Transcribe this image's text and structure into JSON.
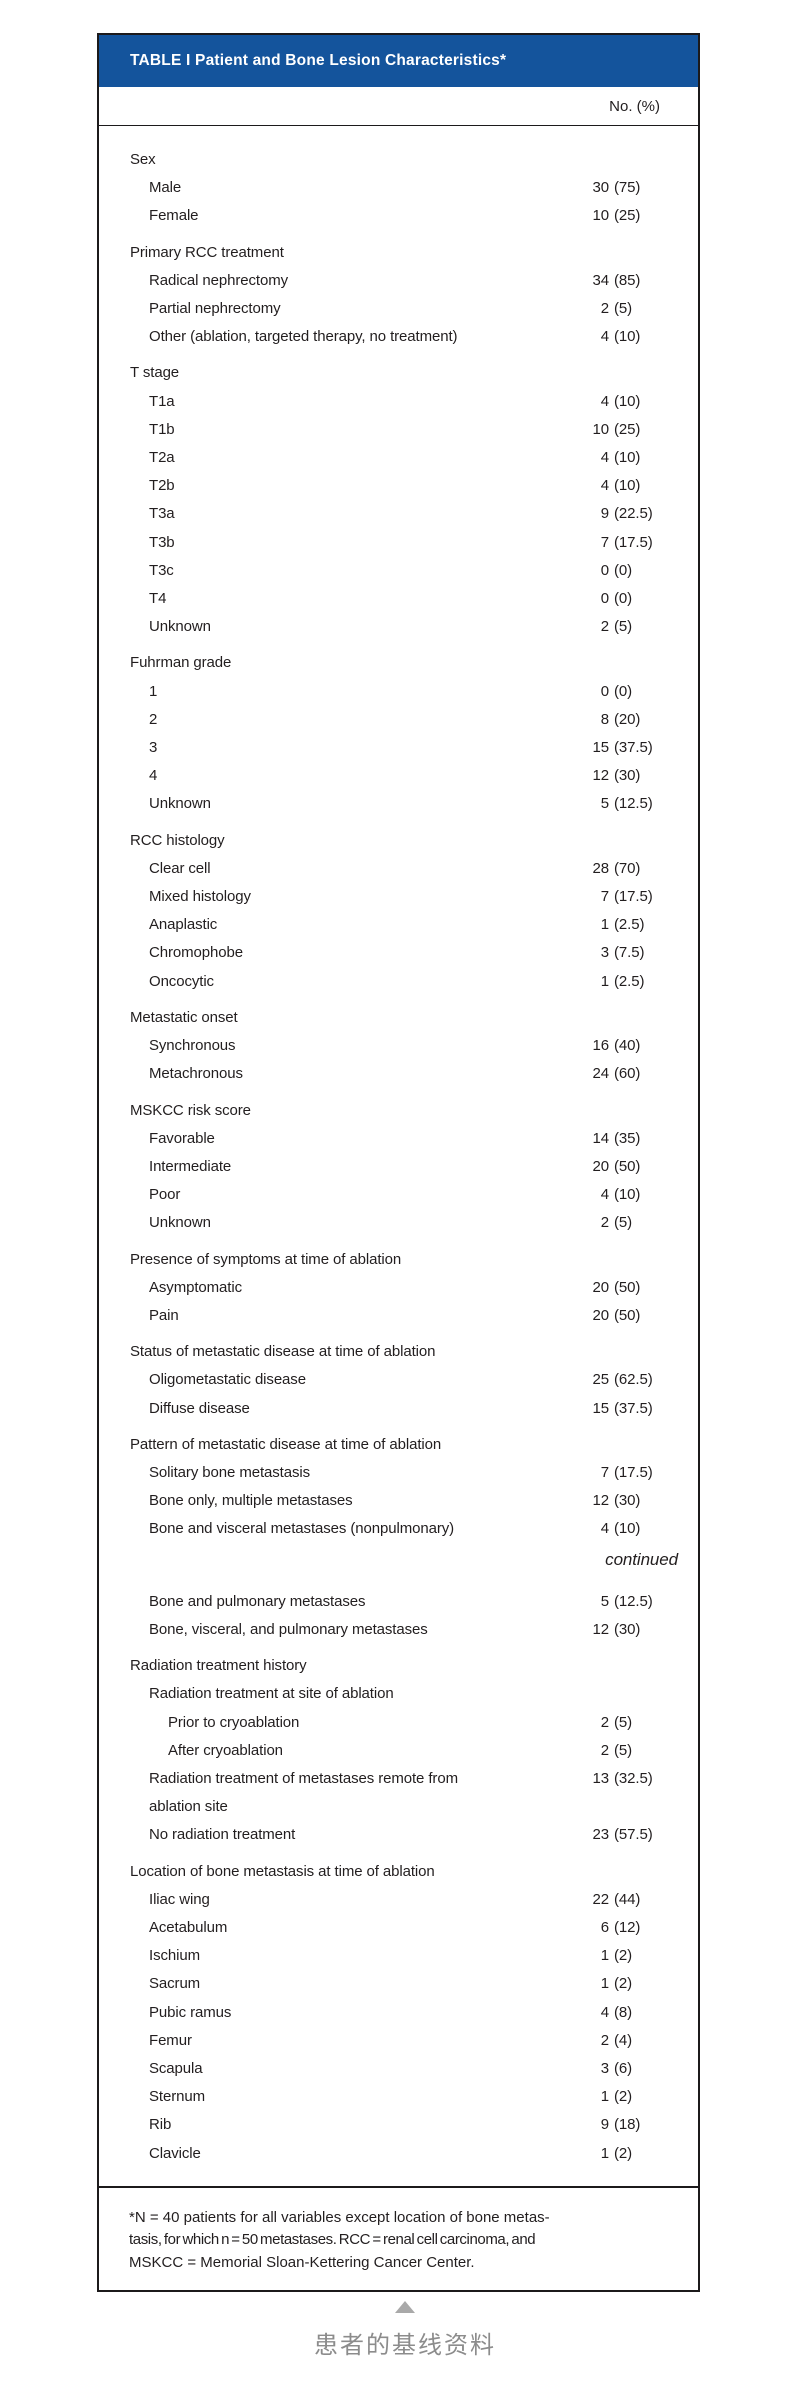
{
  "colors": {
    "header_bg": "#14549c",
    "header_text": "#ffffff",
    "border": "#1c1a1b",
    "body_text": "#221e1f",
    "caption_gray": "#8c8c8c",
    "triangle_gray": "#a9a9a9"
  },
  "table": {
    "title": "TABLE I Patient and Bone Lesion Characteristics*",
    "column_header": "No. (%)",
    "rows": [
      {
        "type": "group",
        "label": "Sex"
      },
      {
        "type": "item",
        "label": "Male",
        "no": "30",
        "pct": "(75)"
      },
      {
        "type": "item",
        "label": "Female",
        "no": "10",
        "pct": "(25)"
      },
      {
        "type": "group",
        "label": "Primary RCC treatment"
      },
      {
        "type": "item",
        "label": "Radical nephrectomy",
        "no": "34",
        "pct": "(85)"
      },
      {
        "type": "item",
        "label": "Partial nephrectomy",
        "no": "2",
        "pct": "(5)"
      },
      {
        "type": "item",
        "label": "Other (ablation, targeted therapy, no treatment)",
        "no": "4",
        "pct": "(10)"
      },
      {
        "type": "group",
        "label": "T stage"
      },
      {
        "type": "item",
        "label": "T1a",
        "no": "4",
        "pct": "(10)"
      },
      {
        "type": "item",
        "label": "T1b",
        "no": "10",
        "pct": "(25)"
      },
      {
        "type": "item",
        "label": "T2a",
        "no": "4",
        "pct": "(10)"
      },
      {
        "type": "item",
        "label": "T2b",
        "no": "4",
        "pct": "(10)"
      },
      {
        "type": "item",
        "label": "T3a",
        "no": "9",
        "pct": "(22.5)"
      },
      {
        "type": "item",
        "label": "T3b",
        "no": "7",
        "pct": "(17.5)"
      },
      {
        "type": "item",
        "label": "T3c",
        "no": "0",
        "pct": "(0)"
      },
      {
        "type": "item",
        "label": "T4",
        "no": "0",
        "pct": "(0)"
      },
      {
        "type": "item",
        "label": "Unknown",
        "no": "2",
        "pct": "(5)"
      },
      {
        "type": "group",
        "label": "Fuhrman grade"
      },
      {
        "type": "item",
        "label": "1",
        "no": "0",
        "pct": "(0)"
      },
      {
        "type": "item",
        "label": "2",
        "no": "8",
        "pct": "(20)"
      },
      {
        "type": "item",
        "label": "3",
        "no": "15",
        "pct": "(37.5)"
      },
      {
        "type": "item",
        "label": "4",
        "no": "12",
        "pct": "(30)"
      },
      {
        "type": "item",
        "label": "Unknown",
        "no": "5",
        "pct": "(12.5)"
      },
      {
        "type": "group",
        "label": "RCC histology"
      },
      {
        "type": "item",
        "label": "Clear cell",
        "no": "28",
        "pct": "(70)"
      },
      {
        "type": "item",
        "label": "Mixed histology",
        "no": "7",
        "pct": "(17.5)"
      },
      {
        "type": "item",
        "label": "Anaplastic",
        "no": "1",
        "pct": "(2.5)"
      },
      {
        "type": "item",
        "label": "Chromophobe",
        "no": "3",
        "pct": "(7.5)"
      },
      {
        "type": "item",
        "label": "Oncocytic",
        "no": "1",
        "pct": "(2.5)"
      },
      {
        "type": "group",
        "label": "Metastatic onset"
      },
      {
        "type": "item",
        "label": "Synchronous",
        "no": "16",
        "pct": "(40)"
      },
      {
        "type": "item",
        "label": "Metachronous",
        "no": "24",
        "pct": "(60)"
      },
      {
        "type": "group",
        "label": "MSKCC risk score"
      },
      {
        "type": "item",
        "label": "Favorable",
        "no": "14",
        "pct": "(35)"
      },
      {
        "type": "item",
        "label": "Intermediate",
        "no": "20",
        "pct": "(50)"
      },
      {
        "type": "item",
        "label": "Poor",
        "no": "4",
        "pct": "(10)"
      },
      {
        "type": "item",
        "label": "Unknown",
        "no": "2",
        "pct": "(5)"
      },
      {
        "type": "group",
        "label": "Presence of symptoms at time of ablation"
      },
      {
        "type": "item",
        "label": "Asymptomatic",
        "no": "20",
        "pct": "(50)"
      },
      {
        "type": "item",
        "label": "Pain",
        "no": "20",
        "pct": "(50)"
      },
      {
        "type": "group",
        "label": "Status of metastatic disease at time of ablation"
      },
      {
        "type": "item",
        "label": "Oligometastatic disease",
        "no": "25",
        "pct": "(62.5)"
      },
      {
        "type": "item",
        "label": "Diffuse disease",
        "no": "15",
        "pct": "(37.5)"
      },
      {
        "type": "group",
        "label": "Pattern of metastatic disease at time of ablation"
      },
      {
        "type": "item",
        "label": "Solitary bone metastasis",
        "no": "7",
        "pct": "(17.5)"
      },
      {
        "type": "item",
        "label": "Bone only, multiple metastases",
        "no": "12",
        "pct": "(30)"
      },
      {
        "type": "item",
        "label": "Bone and visceral metastases (nonpulmonary)",
        "no": "4",
        "pct": "(10)"
      },
      {
        "type": "continued",
        "label": "continued"
      },
      {
        "type": "item",
        "label": "Bone and pulmonary metastases",
        "no": "5",
        "pct": "(12.5)"
      },
      {
        "type": "item",
        "label": "Bone, visceral, and pulmonary metastases",
        "no": "12",
        "pct": "(30)"
      },
      {
        "type": "group",
        "label": "Radiation treatment history"
      },
      {
        "type": "item",
        "label": "Radiation treatment at site of ablation"
      },
      {
        "type": "sub",
        "label": "Prior to cryoablation",
        "no": "2",
        "pct": "(5)"
      },
      {
        "type": "sub",
        "label": "After cryoablation",
        "no": "2",
        "pct": "(5)"
      },
      {
        "type": "item",
        "label": "Radiation treatment of metastases remote from",
        "label2": "ablation site",
        "no": "13",
        "pct": "(32.5)"
      },
      {
        "type": "item",
        "label": "No radiation treatment",
        "no": "23",
        "pct": "(57.5)"
      },
      {
        "type": "group",
        "label": "Location of bone metastasis at time of ablation"
      },
      {
        "type": "item",
        "label": "Iliac wing",
        "no": "22",
        "pct": "(44)"
      },
      {
        "type": "item",
        "label": "Acetabulum",
        "no": "6",
        "pct": "(12)"
      },
      {
        "type": "item",
        "label": "Ischium",
        "no": "1",
        "pct": "(2)"
      },
      {
        "type": "item",
        "label": "Sacrum",
        "no": "1",
        "pct": "(2)"
      },
      {
        "type": "item",
        "label": "Pubic ramus",
        "no": "4",
        "pct": "(8)"
      },
      {
        "type": "item",
        "label": "Femur",
        "no": "2",
        "pct": "(4)"
      },
      {
        "type": "item",
        "label": "Scapula",
        "no": "3",
        "pct": "(6)"
      },
      {
        "type": "item",
        "label": "Sternum",
        "no": "1",
        "pct": "(2)"
      },
      {
        "type": "item",
        "label": "Rib",
        "no": "9",
        "pct": "(18)"
      },
      {
        "type": "item",
        "label": "Clavicle",
        "no": "1",
        "pct": "(2)"
      }
    ],
    "footnote_lines": [
      "*N = 40 patients for all variables except location of bone metas-",
      "tasis, for which n = 50 metastases. RCC = renal cell carcinoma, and",
      "MSKCC = Memorial Sloan-Kettering Cancer Center."
    ]
  },
  "caption": {
    "text": "患者的基线资料"
  }
}
